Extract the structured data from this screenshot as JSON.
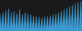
{
  "chart_data": {
    "type": "area",
    "values": [
      180,
      30,
      200,
      20,
      220,
      15,
      240,
      10,
      200,
      25,
      210,
      20,
      190,
      15,
      230,
      10,
      180,
      20,
      200,
      15,
      185,
      10,
      175,
      20,
      160,
      15,
      155,
      10,
      150,
      15,
      145,
      10,
      155,
      15,
      160,
      20,
      165,
      25,
      175,
      30,
      185,
      35,
      200,
      40,
      215,
      45,
      230,
      50,
      245,
      30,
      260,
      40,
      275,
      20,
      290,
      35,
      305,
      15,
      320,
      50
    ],
    "color": "#3d9ad1",
    "ylim": [
      0,
      326.4
    ],
    "tick_labels": false,
    "grid": false
  }
}
